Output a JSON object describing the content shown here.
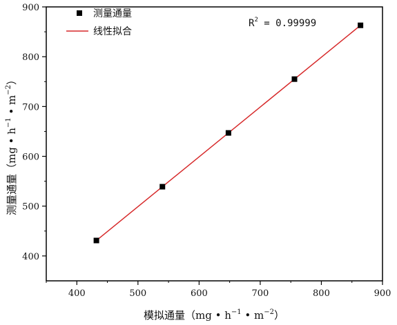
{
  "chart_data": {
    "type": "scatter",
    "xlabel": {
      "main": "模拟通量",
      "unit_open": "（mg • h",
      "unit_mid": " • m",
      "unit_close": "）",
      "sup1": "−1",
      "sup2": "−2"
    },
    "ylabel": {
      "main": "测量通量",
      "unit_open": "（mg • h",
      "unit_mid": " • m",
      "unit_close": "）",
      "sup1": "−1",
      "sup2": "−2"
    },
    "xlim": [
      350,
      900
    ],
    "ylim": [
      350,
      900
    ],
    "x_ticks": [
      "400",
      "500",
      "600",
      "700",
      "800",
      "900"
    ],
    "y_ticks": [
      "400",
      "500",
      "600",
      "700",
      "800",
      "900"
    ],
    "series": [
      {
        "name": "测量通量",
        "kind": "scatter",
        "marker": "square",
        "color": "#000000",
        "x": [
          432,
          540,
          648,
          756,
          864
        ],
        "y": [
          431,
          539,
          647,
          755,
          863
        ]
      },
      {
        "name": "线性拟合",
        "kind": "line",
        "color": "#d62728",
        "x": [
          432,
          864
        ],
        "y": [
          431,
          863
        ]
      }
    ],
    "annotation": {
      "base": "R",
      "sup": "2",
      "rest": " = 0.99999"
    },
    "legend": {
      "position": "top-left"
    },
    "grid": false
  }
}
